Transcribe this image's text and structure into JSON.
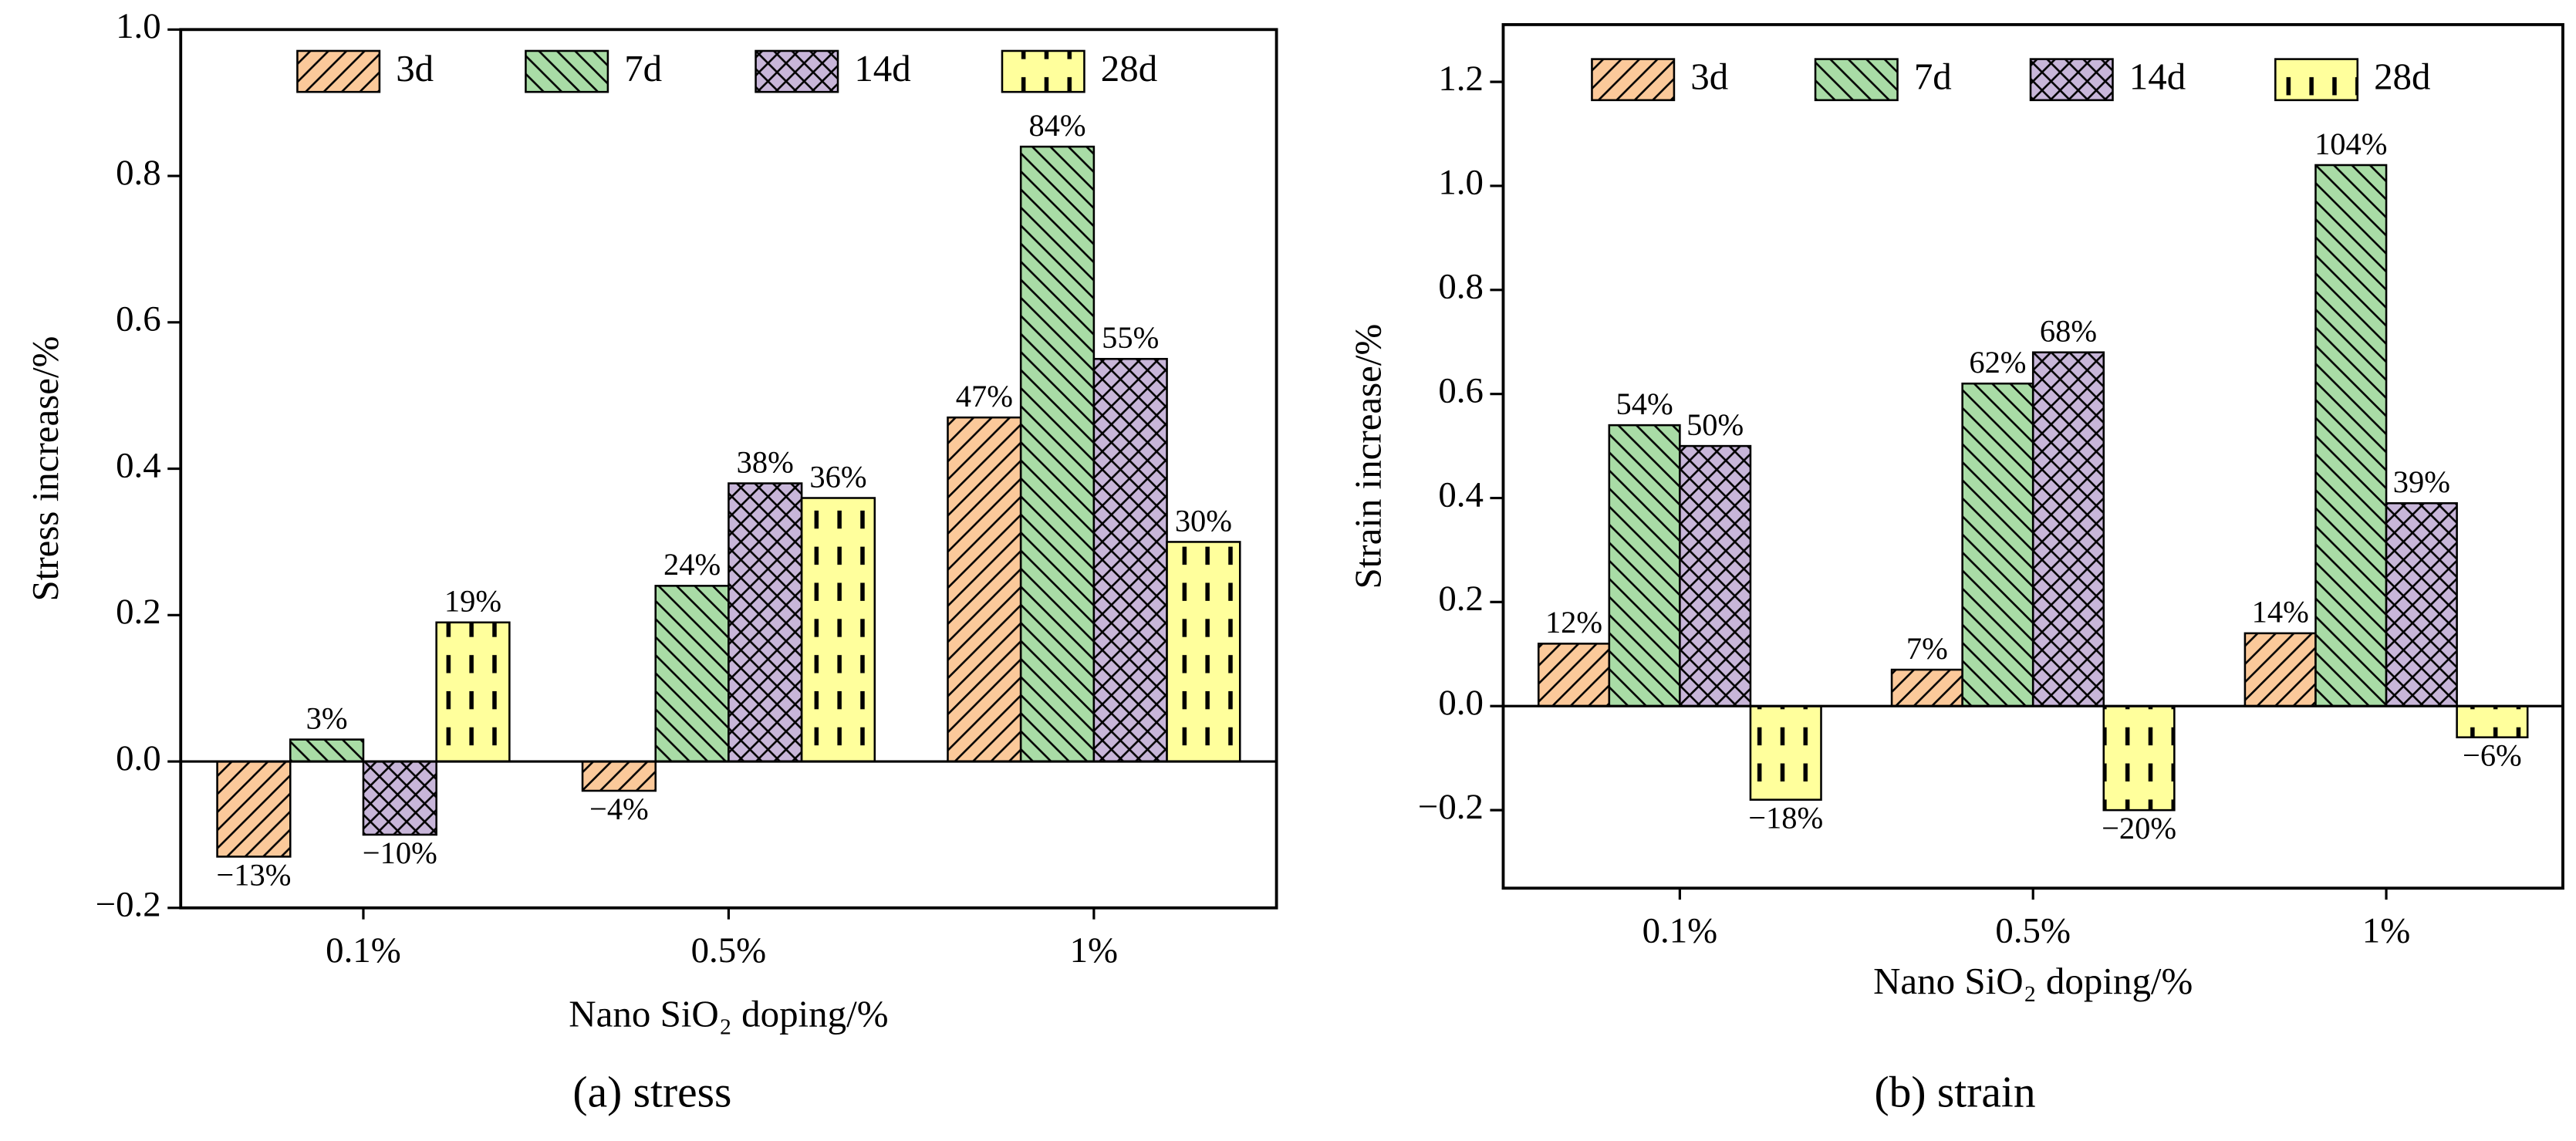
{
  "chart_data": [
    {
      "type": "bar",
      "caption": "(a) stress",
      "x_label": "Nano SiO₂ doping/%",
      "y_label": "Stress increase/%",
      "categories": [
        "0.1%",
        "0.5%",
        "1%"
      ],
      "ylim": [
        -0.2,
        1.0
      ],
      "yticks": [
        {
          "value": -0.2,
          "label": "−0.2"
        },
        {
          "value": 0,
          "label": "0.0"
        },
        0.2,
        0.4,
        0.6,
        0.8,
        {
          "value": 1.0,
          "label": "1.0"
        }
      ],
      "legend": "top",
      "series": [
        {
          "name": "3d",
          "color": "#fbc99a",
          "hatch": "/",
          "values": [
            -0.13,
            -0.04,
            0.47
          ],
          "value_labels": [
            "−13%",
            "−4%",
            "47%"
          ]
        },
        {
          "name": "7d",
          "color": "#a9dca6",
          "hatch": "\\",
          "values": [
            0.03,
            0.24,
            0.84
          ],
          "value_labels": [
            "3%",
            "24%",
            "84%"
          ]
        },
        {
          "name": "14d",
          "color": "#c8b6d9",
          "hatch": "x",
          "values": [
            -0.1,
            0.38,
            0.55
          ],
          "value_labels": [
            "−10%",
            "38%",
            "55%"
          ]
        },
        {
          "name": "28d",
          "color": "#ffff9c",
          "hatch": "|",
          "values": [
            0.19,
            0.36,
            0.3
          ],
          "value_labels": [
            "19%",
            "36%",
            "30%"
          ]
        }
      ]
    },
    {
      "type": "bar",
      "caption": "(b) strain",
      "x_label": "Nano SiO₂ doping/%",
      "y_label": "Strain increase/%",
      "categories": [
        "0.1%",
        "0.5%",
        "1%"
      ],
      "ylim": [
        -0.35,
        1.31
      ],
      "yticks": [
        {
          "value": -0.2,
          "label": "−0.2"
        },
        {
          "value": 0,
          "label": "0.0"
        },
        0.2,
        0.4,
        0.6,
        0.8,
        {
          "value": 1.0,
          "label": "1.0"
        },
        1.2
      ],
      "legend": "top",
      "series": [
        {
          "name": "3d",
          "color": "#fbc99a",
          "hatch": "/",
          "values": [
            0.12,
            0.07,
            0.14
          ],
          "value_labels": [
            "12%",
            "7%",
            "14%"
          ]
        },
        {
          "name": "7d",
          "color": "#a9dca6",
          "hatch": "\\",
          "values": [
            0.54,
            0.62,
            1.04
          ],
          "value_labels": [
            "54%",
            "62%",
            "104%"
          ]
        },
        {
          "name": "14d",
          "color": "#c8b6d9",
          "hatch": "x",
          "values": [
            0.5,
            0.68,
            0.39
          ],
          "value_labels": [
            "50%",
            "68%",
            "39%"
          ]
        },
        {
          "name": "28d",
          "color": "#ffff9c",
          "hatch": "|",
          "values": [
            -0.18,
            -0.2,
            -0.06
          ],
          "value_labels": [
            "−18%",
            "−20%",
            "−6%"
          ]
        }
      ]
    }
  ]
}
